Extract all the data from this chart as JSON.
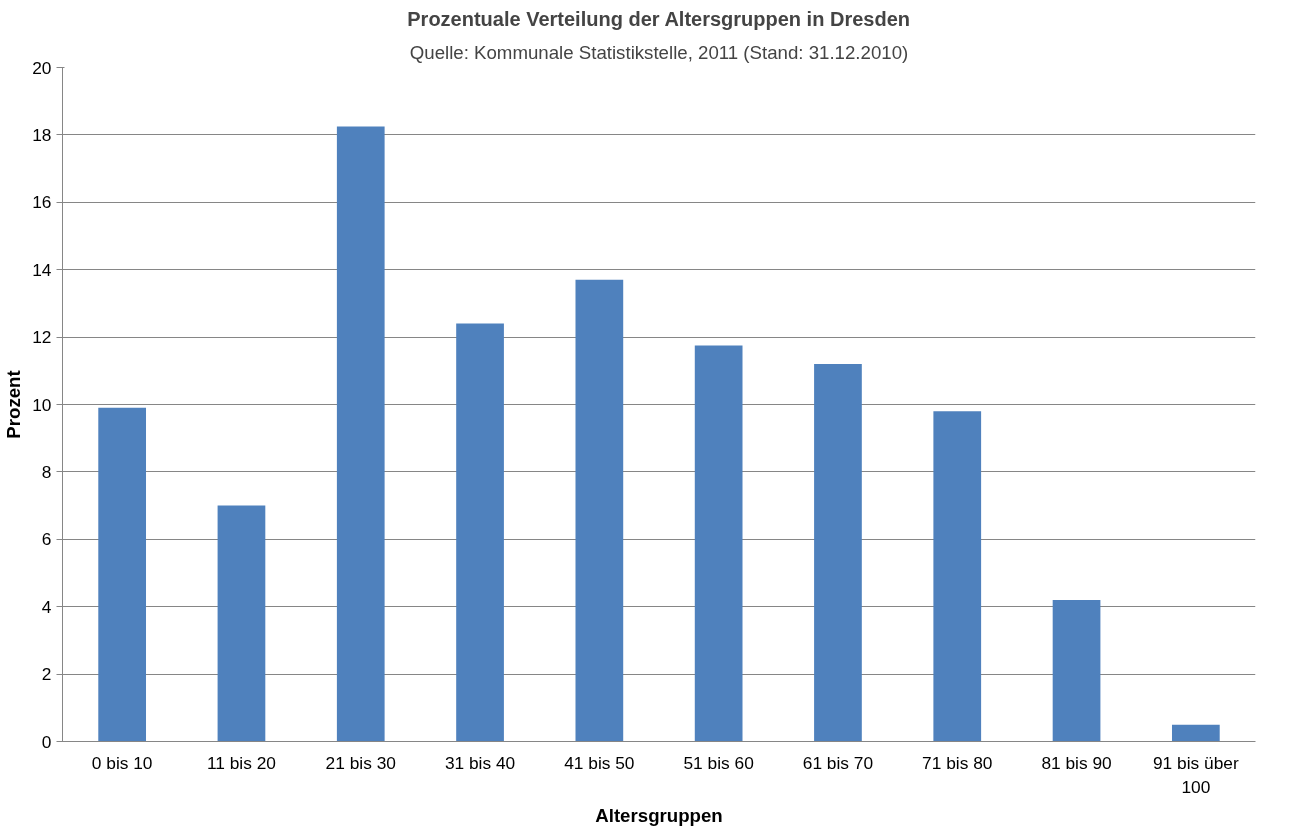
{
  "chart_data": {
    "type": "bar",
    "title": "Prozentuale Verteilung der Altersgruppen in Dresden",
    "subtitle": "Quelle: Kommunale Statistikstelle, 2011 (Stand: 31.12.2010)",
    "xlabel": "Altersgruppen",
    "ylabel": "Prozent",
    "categories": [
      "0 bis 10",
      "11 bis 20",
      "21 bis 30",
      "31 bis 40",
      "41 bis 50",
      "51 bis 60",
      "61 bis 70",
      "71 bis 80",
      "81 bis 90",
      "91 bis über 100"
    ],
    "values": [
      9.9,
      7.0,
      18.25,
      12.4,
      13.7,
      11.75,
      11.2,
      9.8,
      4.2,
      0.5
    ],
    "color": "#4f81bd",
    "ylim": [
      0,
      20
    ],
    "yticks": [
      0,
      2,
      4,
      6,
      8,
      10,
      12,
      14,
      16,
      18,
      20
    ],
    "grid": "y"
  }
}
